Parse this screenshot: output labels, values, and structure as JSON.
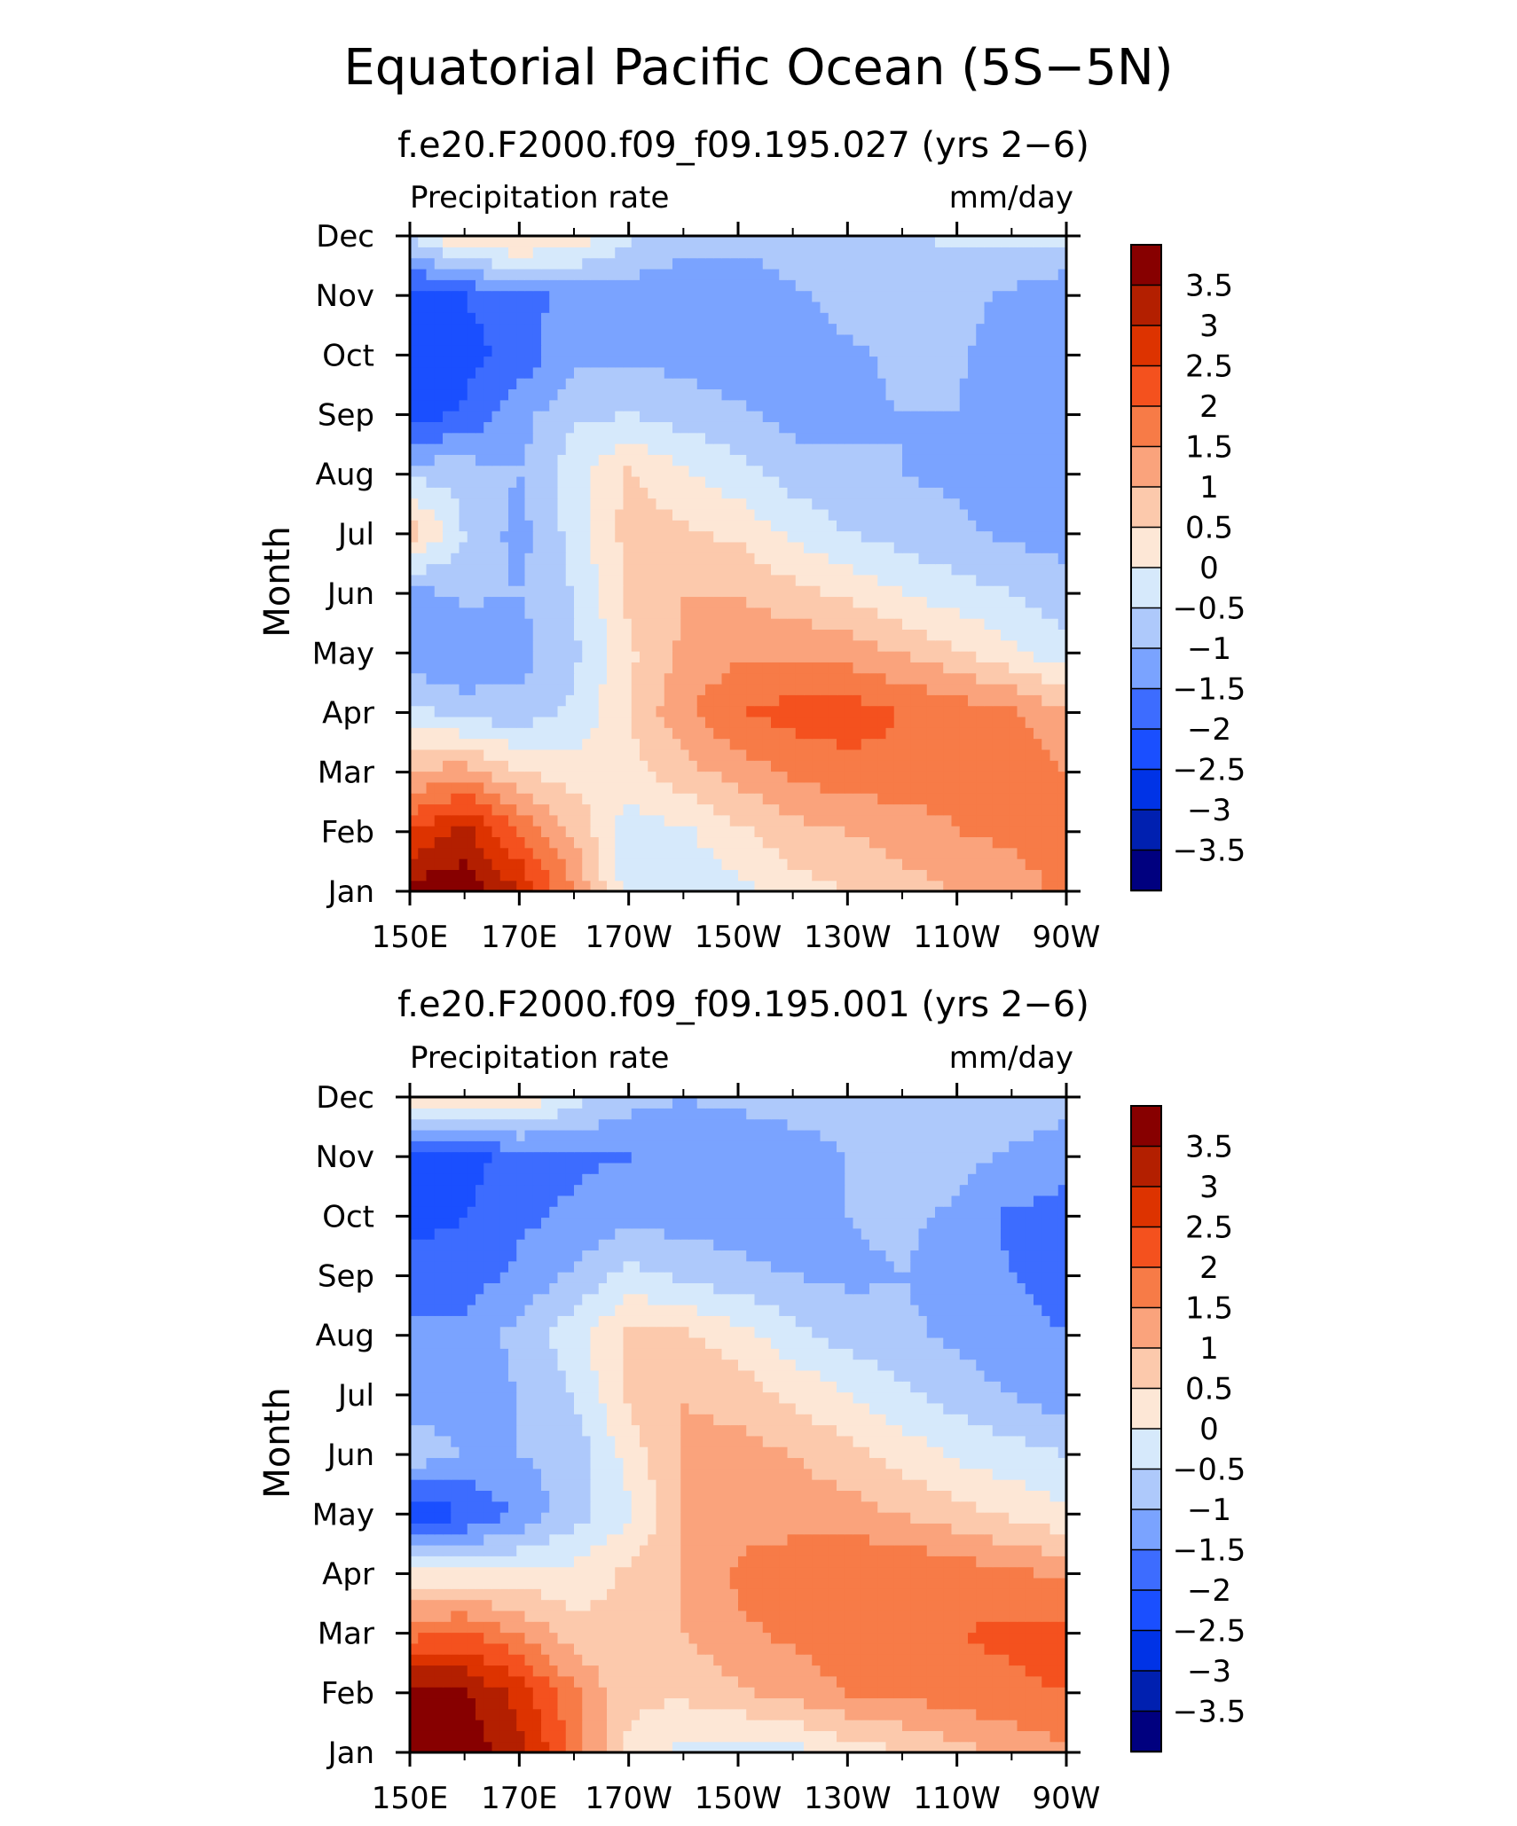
{
  "figure": {
    "title": "Equatorial Pacific Ocean (5S−5N)"
  },
  "panels": [
    {
      "subtitle": "f.e20.F2000.f09_f09.195.027 (yrs 2−6)"
    },
    {
      "subtitle": "f.e20.F2000.f09_f09.195.001 (yrs 2−6)"
    }
  ],
  "colors": {
    "levels": [
      -3.5,
      -3,
      -2.5,
      -2,
      -1.5,
      -1,
      -0.5,
      0,
      0.5,
      1,
      1.5,
      2,
      2.5,
      3,
      3.5
    ],
    "palette": [
      "#00007f",
      "#0020b0",
      "#0033e6",
      "#1a4fff",
      "#3d6cff",
      "#7aa3ff",
      "#aec9fb",
      "#d6e9fb",
      "#fde7d6",
      "#fcc9ac",
      "#faa37c",
      "#f77b47",
      "#f4511e",
      "#dd3300",
      "#b31f00",
      "#870000"
    ]
  },
  "chart_data": [
    {
      "type": "heatmap",
      "title": "f.e20.F2000.f09_f09.195.027 (yrs 2−6)",
      "left_label": "Precipitation rate",
      "right_label": "mm/day",
      "ylabel": "Month",
      "xlabel": "",
      "x_ticks": [
        "150E",
        "170E",
        "170W",
        "150W",
        "130W",
        "110W",
        "90W"
      ],
      "x_tick_lon": [
        150,
        170,
        190,
        210,
        230,
        250,
        270
      ],
      "y_ticks": [
        "Jan",
        "Feb",
        "Mar",
        "Apr",
        "May",
        "Jun",
        "Jul",
        "Aug",
        "Sep",
        "Oct",
        "Nov",
        "Dec"
      ],
      "xlim": [
        150,
        270
      ],
      "ylim": [
        1,
        12
      ],
      "colorbar_labels": [
        "−3.5",
        "−3",
        "−2.5",
        "−2",
        "−1.5",
        "−1",
        "−0.5",
        "0",
        "0.5",
        "1",
        "1.5",
        "2",
        "2.5",
        "3",
        "3.5"
      ],
      "lon": [
        150,
        160,
        170,
        180,
        190,
        200,
        210,
        220,
        230,
        240,
        250,
        260,
        270
      ],
      "values": [
        [
          3.8,
          3.8,
          3.0,
          1.5,
          -0.3,
          -0.3,
          -0.2,
          0.3,
          0.5,
          0.8,
          1.0,
          1.3,
          1.6
        ],
        [
          2.5,
          3.2,
          2.0,
          0.9,
          -0.3,
          -0.1,
          0.4,
          0.8,
          1.0,
          1.2,
          1.5,
          1.6,
          1.7
        ],
        [
          1.0,
          1.3,
          0.5,
          0.3,
          0.3,
          0.8,
          1.2,
          1.6,
          1.8,
          1.8,
          1.7,
          1.8,
          1.5
        ],
        [
          -0.3,
          -0.7,
          -0.8,
          -0.4,
          0.5,
          1.4,
          2.0,
          2.2,
          2.3,
          2.0,
          1.8,
          1.6,
          1.1
        ],
        [
          -1.4,
          -1.5,
          -1.2,
          -0.6,
          0.4,
          1.1,
          1.4,
          1.4,
          1.3,
          1.0,
          0.6,
          0.1,
          -0.3
        ],
        [
          -1.2,
          -0.9,
          -1.0,
          -0.5,
          0.6,
          1.0,
          1.0,
          0.7,
          0.4,
          0.0,
          -0.3,
          -0.5,
          -0.8
        ],
        [
          0.8,
          -0.5,
          -1.2,
          -0.3,
          0.7,
          0.6,
          0.4,
          -0.1,
          -0.5,
          -0.7,
          -0.9,
          -1.1,
          -1.2
        ],
        [
          -0.6,
          -0.7,
          -1.0,
          -0.2,
          0.6,
          0.1,
          -0.3,
          -0.7,
          -0.9,
          -1.0,
          -1.1,
          -1.3,
          -1.4
        ],
        [
          -2.3,
          -1.9,
          -1.2,
          -0.6,
          -0.5,
          -0.7,
          -0.9,
          -1.2,
          -1.1,
          -1.0,
          -1.0,
          -1.4,
          -1.5
        ],
        [
          -2.5,
          -2.2,
          -1.8,
          -1.1,
          -1.1,
          -1.2,
          -1.4,
          -1.3,
          -1.1,
          -0.9,
          -0.9,
          -1.4,
          -1.5
        ],
        [
          -2.3,
          -2.0,
          -1.7,
          -1.3,
          -1.3,
          -1.3,
          -1.4,
          -1.1,
          -0.8,
          -0.8,
          -0.8,
          -1.1,
          -1.4
        ],
        [
          -0.5,
          0.6,
          0.7,
          0.3,
          -0.4,
          -0.8,
          -0.8,
          -0.7,
          -0.7,
          -0.6,
          -0.4,
          -0.3,
          -0.4
        ]
      ]
    },
    {
      "type": "heatmap",
      "title": "f.e20.F2000.f09_f09.195.001 (yrs 2−6)",
      "left_label": "Precipitation rate",
      "right_label": "mm/day",
      "ylabel": "Month",
      "xlabel": "",
      "x_ticks": [
        "150E",
        "170E",
        "170W",
        "150W",
        "130W",
        "110W",
        "90W"
      ],
      "x_tick_lon": [
        150,
        170,
        190,
        210,
        230,
        250,
        270
      ],
      "y_ticks": [
        "Jan",
        "Feb",
        "Mar",
        "Apr",
        "May",
        "Jun",
        "Jul",
        "Aug",
        "Sep",
        "Oct",
        "Nov",
        "Dec"
      ],
      "xlim": [
        150,
        270
      ],
      "ylim": [
        1,
        12
      ],
      "colorbar_labels": [
        "−3.5",
        "−3",
        "−2.5",
        "−2",
        "−1.5",
        "−1",
        "−0.5",
        "0",
        "0.5",
        "1",
        "1.5",
        "2",
        "2.5",
        "3",
        "3.5"
      ],
      "lon": [
        150,
        160,
        170,
        180,
        190,
        200,
        210,
        220,
        230,
        240,
        250,
        260,
        270
      ],
      "values": [
        [
          3.8,
          3.8,
          3.2,
          1.8,
          0.4,
          -0.2,
          -0.3,
          -0.2,
          0.2,
          0.5,
          0.8,
          1.1,
          1.4
        ],
        [
          3.8,
          3.6,
          2.8,
          1.6,
          0.6,
          0.6,
          0.9,
          1.2,
          1.5,
          1.6,
          1.8,
          1.9,
          2.0
        ],
        [
          1.8,
          2.1,
          1.5,
          0.7,
          0.6,
          1.0,
          1.4,
          1.6,
          1.8,
          1.9,
          2.0,
          2.1,
          2.2
        ],
        [
          0.2,
          0.2,
          0.1,
          0.2,
          0.6,
          1.0,
          1.6,
          1.8,
          2.0,
          2.0,
          1.8,
          1.6,
          1.4
        ],
        [
          -2.3,
          -2.1,
          -1.4,
          -0.7,
          -0.1,
          1.0,
          1.3,
          1.3,
          1.2,
          1.0,
          0.7,
          0.4,
          0.1
        ],
        [
          -0.7,
          -1.0,
          -1.0,
          -0.8,
          0.2,
          1.1,
          1.2,
          1.0,
          0.7,
          0.3,
          -0.1,
          -0.3,
          -0.5
        ],
        [
          -1.2,
          -1.3,
          -1.0,
          -0.5,
          0.6,
          1.0,
          0.8,
          0.4,
          0.0,
          -0.4,
          -0.7,
          -1.0,
          -1.3
        ],
        [
          -1.3,
          -1.4,
          -0.8,
          -0.2,
          0.6,
          0.6,
          0.2,
          -0.3,
          -0.7,
          -0.9,
          -1.1,
          -1.4,
          -1.5
        ],
        [
          -1.8,
          -1.7,
          -1.4,
          -0.9,
          -0.3,
          -0.6,
          -0.8,
          -1.0,
          -1.1,
          -1.0,
          -1.2,
          -1.5,
          -1.6
        ],
        [
          -2.2,
          -2.0,
          -1.6,
          -1.4,
          -1.2,
          -1.2,
          -1.3,
          -1.4,
          -1.0,
          -0.9,
          -1.1,
          -1.6,
          -1.6
        ],
        [
          -2.3,
          -2.2,
          -1.8,
          -1.6,
          -1.5,
          -1.3,
          -1.3,
          -1.2,
          -1.0,
          -0.8,
          -0.8,
          -1.1,
          -1.4
        ],
        [
          0.4,
          0.6,
          0.5,
          -0.3,
          -0.8,
          -1.0,
          -0.9,
          -0.8,
          -0.8,
          -0.6,
          -0.5,
          -0.5,
          -0.7
        ]
      ]
    }
  ]
}
